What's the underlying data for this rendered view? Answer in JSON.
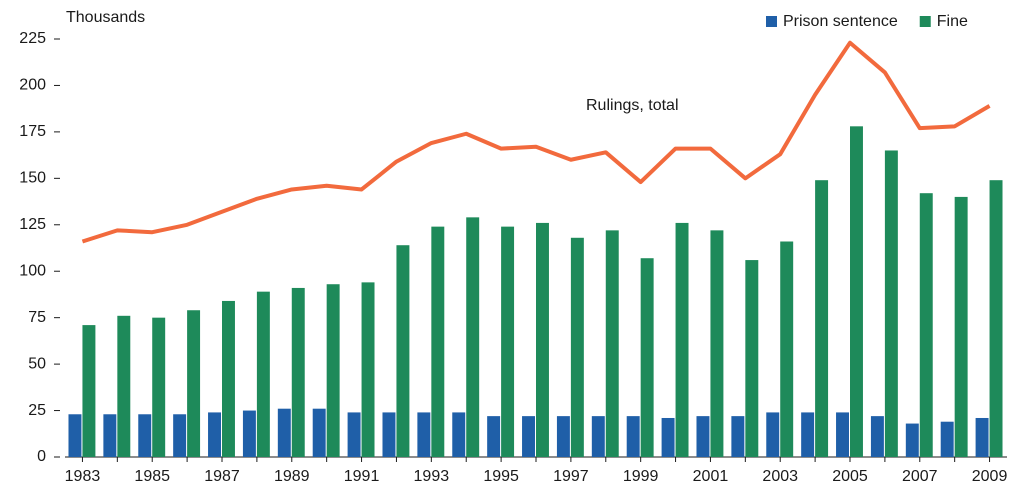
{
  "chart_data": {
    "type": "bar",
    "y_label": "Thousands",
    "categories": [
      "1983",
      null,
      "1985",
      null,
      "1987",
      null,
      "1989",
      null,
      "1991",
      null,
      "1993",
      null,
      "1995",
      null,
      "1997",
      null,
      "1999",
      null,
      "2001",
      null,
      "2003",
      null,
      "2005",
      null,
      "2007",
      null,
      "2009"
    ],
    "series": [
      {
        "name": "Prison sentence",
        "type": "bar",
        "color": "#1f5fa8",
        "values": [
          23,
          23,
          23,
          23,
          24,
          25,
          26,
          26,
          24,
          24,
          24,
          24,
          22,
          22,
          22,
          22,
          22,
          21,
          22,
          22,
          24,
          24,
          24,
          22,
          18,
          19,
          21
        ]
      },
      {
        "name": "Fine",
        "type": "bar",
        "color": "#1e8a5a",
        "values": [
          71,
          76,
          75,
          79,
          84,
          89,
          91,
          93,
          94,
          114,
          124,
          129,
          124,
          126,
          118,
          122,
          107,
          126,
          122,
          106,
          116,
          149,
          178,
          165,
          142,
          140,
          149
        ]
      },
      {
        "name": "Rulings, total",
        "type": "line",
        "color": "#f26a3d",
        "values": [
          116,
          122,
          121,
          125,
          132,
          139,
          144,
          146,
          144,
          159,
          169,
          174,
          166,
          167,
          160,
          164,
          148,
          166,
          166,
          150,
          163,
          195,
          223,
          207,
          177,
          178,
          189
        ]
      }
    ],
    "ylim": [
      0,
      225
    ],
    "yticks": [
      0,
      25,
      50,
      75,
      100,
      125,
      150,
      175,
      200,
      225
    ]
  }
}
